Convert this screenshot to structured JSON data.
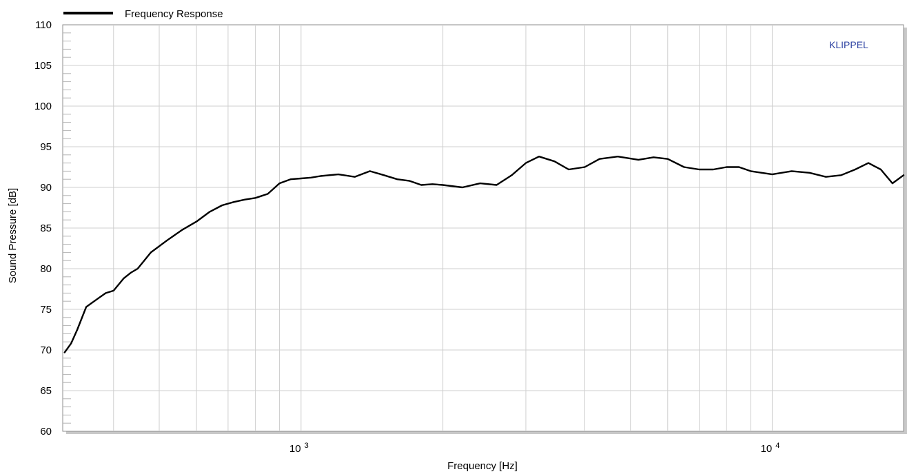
{
  "chart_data": {
    "type": "line",
    "title": "",
    "xlabel": "Frequency  [Hz]",
    "ylabel": "Sound Pressure  [dB]",
    "x_scale": "log",
    "xlim": [
      312,
      19000
    ],
    "ylim": [
      60,
      110
    ],
    "yticks": [
      60,
      65,
      70,
      75,
      80,
      85,
      90,
      95,
      100,
      105,
      110
    ],
    "xtick_labels": [
      {
        "value": 1000,
        "base": "10",
        "exp": "3"
      },
      {
        "value": 10000,
        "base": "10",
        "exp": "4"
      }
    ],
    "grid": true,
    "legend": {
      "placement": "top-left",
      "entries": [
        "Frequency Response"
      ]
    },
    "watermark": "KLIPPEL",
    "series": [
      {
        "name": "Frequency Response",
        "color": "#000000",
        "x": [
          315,
          325,
          335,
          350,
          370,
          385,
          400,
          420,
          435,
          450,
          480,
          520,
          560,
          600,
          640,
          680,
          720,
          760,
          800,
          850,
          900,
          950,
          1000,
          1050,
          1100,
          1200,
          1300,
          1400,
          1500,
          1600,
          1700,
          1800,
          1900,
          2000,
          2200,
          2400,
          2600,
          2800,
          3000,
          3200,
          3450,
          3700,
          4000,
          4300,
          4700,
          5200,
          5600,
          6000,
          6500,
          7000,
          7500,
          8000,
          8500,
          9000,
          10000,
          11000,
          12000,
          13000,
          14000,
          15000,
          16000,
          17000,
          18000,
          19000
        ],
        "values": [
          69.7,
          70.8,
          72.5,
          75.3,
          76.3,
          77.0,
          77.3,
          78.8,
          79.5,
          80.0,
          82.0,
          83.5,
          84.8,
          85.8,
          87.0,
          87.8,
          88.2,
          88.5,
          88.7,
          89.2,
          90.5,
          91.0,
          91.1,
          91.2,
          91.4,
          91.6,
          91.3,
          92.0,
          91.5,
          91.0,
          90.8,
          90.3,
          90.4,
          90.3,
          90.0,
          90.5,
          90.3,
          91.5,
          93.0,
          93.8,
          93.2,
          92.2,
          92.5,
          93.5,
          93.8,
          93.4,
          93.7,
          93.5,
          92.5,
          92.2,
          92.2,
          92.5,
          92.5,
          92.0,
          91.6,
          92.0,
          91.8,
          91.3,
          91.5,
          92.2,
          93.0,
          92.2,
          90.5,
          91.5
        ]
      }
    ]
  }
}
